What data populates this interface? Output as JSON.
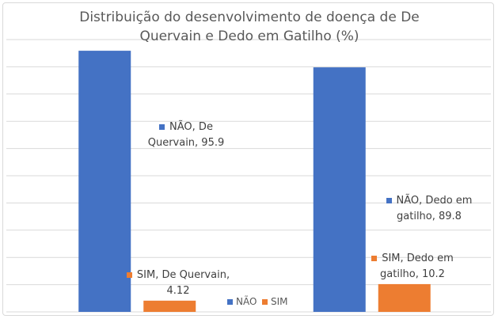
{
  "chart_data": {
    "type": "bar",
    "title": "Distribuição do desenvolvimento de doença de De Quervain e Dedo em Gatilho (%)",
    "categories": [
      null,
      null
    ],
    "series": [
      {
        "name": "NÃO",
        "color": "#4472c4",
        "values": [
          95.9,
          89.8
        ],
        "value_labels": [
          "NÃO, De Quervain, 95.9",
          "NÃO, Dedo em gatilho, 89.8"
        ]
      },
      {
        "name": "SIM",
        "color": "#ed7d31",
        "values": [
          4.12,
          10.2
        ],
        "value_labels": [
          "SIM, De Quervain, 4.12",
          "SIM, Dedo em gatilho, 10.2"
        ]
      }
    ],
    "ylim": [
      0,
      100
    ],
    "yticks": [
      0,
      10,
      20,
      30,
      40,
      50,
      60,
      70,
      80,
      90,
      100
    ],
    "grid": true,
    "legend": "bottom"
  }
}
